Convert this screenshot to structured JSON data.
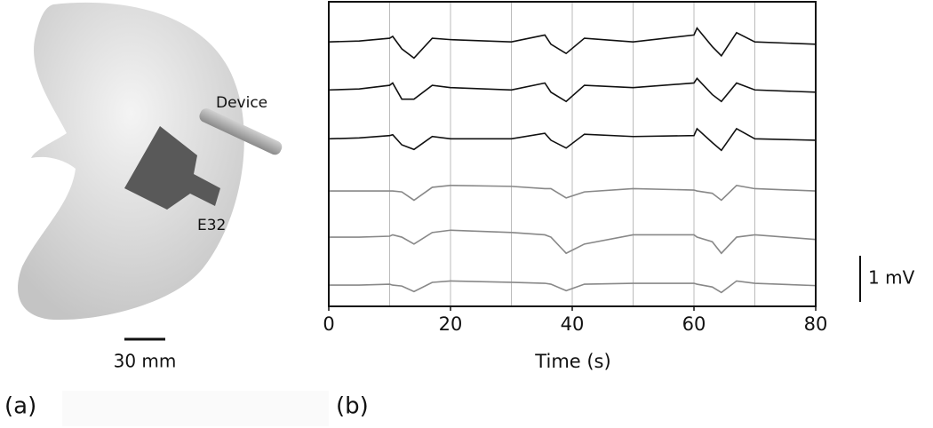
{
  "panel_a": {
    "label": "(a)",
    "device_label": "Device",
    "probe_label": "E32",
    "scale_bar_label": "30 mm"
  },
  "chart_data": {
    "type": "line",
    "panel_label": "(b)",
    "x_label": "Time (s)",
    "x": [
      0,
      5,
      10,
      10.5,
      12,
      14,
      17,
      20,
      30,
      35.5,
      36.5,
      39,
      42,
      50,
      60,
      60.5,
      63,
      64.5,
      67,
      70,
      80
    ],
    "series": [
      {
        "color": "#111111",
        "values": [
          5.73,
          5.75,
          5.81,
          5.85,
          5.58,
          5.38,
          5.81,
          5.78,
          5.73,
          5.88,
          5.68,
          5.48,
          5.81,
          5.73,
          5.88,
          6.03,
          5.63,
          5.43,
          5.93,
          5.73,
          5.68
        ]
      },
      {
        "color": "#111111",
        "values": [
          4.69,
          4.71,
          4.79,
          4.84,
          4.49,
          4.49,
          4.79,
          4.74,
          4.69,
          4.84,
          4.64,
          4.44,
          4.79,
          4.74,
          4.84,
          4.94,
          4.59,
          4.44,
          4.84,
          4.69,
          4.64
        ]
      },
      {
        "color": "#111111",
        "values": [
          3.63,
          3.65,
          3.7,
          3.72,
          3.5,
          3.4,
          3.68,
          3.63,
          3.63,
          3.75,
          3.6,
          3.43,
          3.73,
          3.68,
          3.7,
          3.85,
          3.55,
          3.38,
          3.85,
          3.63,
          3.6
        ]
      },
      {
        "color": "#888888",
        "values": [
          2.5,
          2.5,
          2.5,
          2.5,
          2.48,
          2.3,
          2.58,
          2.62,
          2.6,
          2.55,
          2.55,
          2.35,
          2.48,
          2.55,
          2.52,
          2.5,
          2.45,
          2.3,
          2.62,
          2.55,
          2.5
        ]
      },
      {
        "color": "#888888",
        "values": [
          1.5,
          1.5,
          1.52,
          1.55,
          1.5,
          1.35,
          1.6,
          1.65,
          1.6,
          1.55,
          1.5,
          1.15,
          1.35,
          1.55,
          1.55,
          1.5,
          1.4,
          1.15,
          1.5,
          1.55,
          1.45
        ]
      },
      {
        "color": "#888888",
        "values": [
          0.46,
          0.46,
          0.48,
          0.46,
          0.44,
          0.32,
          0.52,
          0.55,
          0.52,
          0.5,
          0.48,
          0.34,
          0.48,
          0.5,
          0.5,
          0.48,
          0.42,
          0.3,
          0.55,
          0.5,
          0.45
        ]
      }
    ],
    "xlim": [
      0,
      80
    ],
    "xticks": [
      0,
      20,
      40,
      60,
      80
    ],
    "x_gridlines": [
      10,
      20,
      30,
      40,
      50,
      60,
      70
    ],
    "ylim": [
      0,
      6.6
    ],
    "scale_bar": {
      "value": 1,
      "label": "1 mV"
    }
  }
}
